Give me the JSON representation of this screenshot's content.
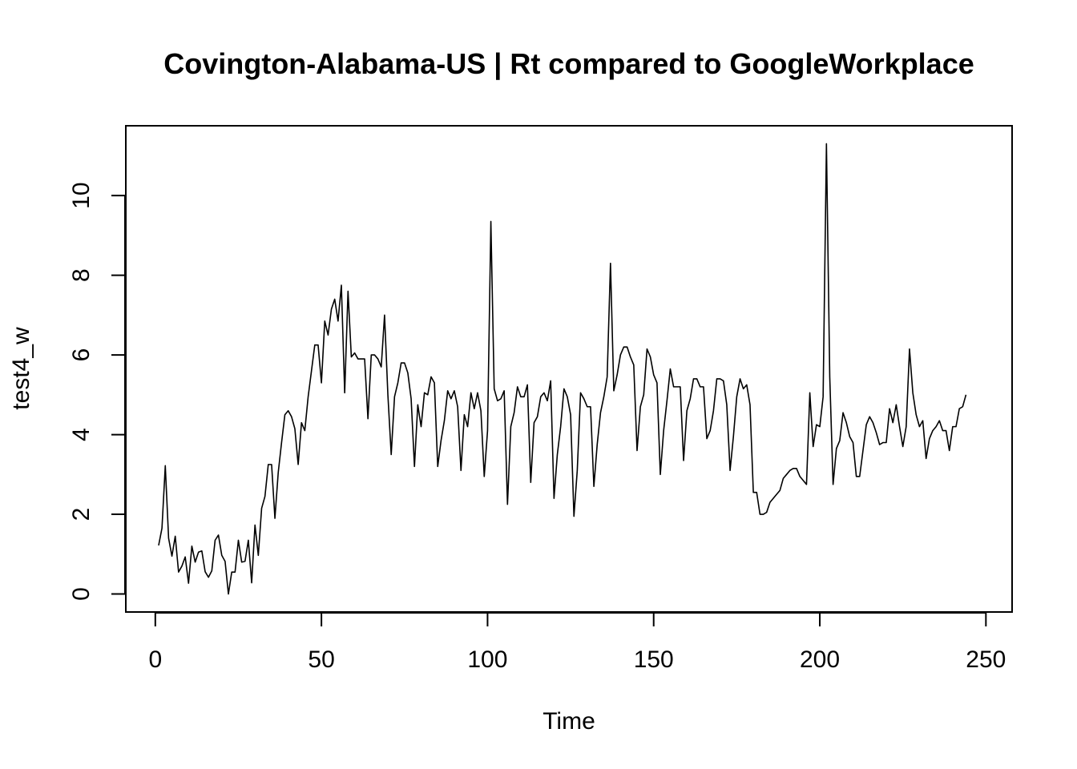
{
  "chart_data": {
    "type": "line",
    "title": "Covington-Alabama-US | Rt compared to GoogleWorkplace",
    "xlabel": "Time",
    "ylabel": "test4_w",
    "xlim": [
      1,
      248
    ],
    "ylim": [
      0,
      11.3
    ],
    "x_ticks": [
      0,
      50,
      100,
      150,
      200,
      250
    ],
    "y_ticks": [
      0,
      2,
      4,
      6,
      8,
      10
    ],
    "grid": false,
    "legend": "none",
    "line_color": "#000000",
    "series": [
      {
        "x_start": 1,
        "x_step": 1,
        "values": [
          1.22,
          1.65,
          3.22,
          1.4,
          0.95,
          1.45,
          0.55,
          0.7,
          0.93,
          0.27,
          1.2,
          0.8,
          1.05,
          1.08,
          0.56,
          0.42,
          0.58,
          1.35,
          1.48,
          0.97,
          0.82,
          0.0,
          0.55,
          0.55,
          1.35,
          0.8,
          0.82,
          1.35,
          0.28,
          1.73,
          0.97,
          2.15,
          2.45,
          3.25,
          3.25,
          1.9,
          3.05,
          3.8,
          4.5,
          4.6,
          4.45,
          4.15,
          3.25,
          4.3,
          4.1,
          4.95,
          5.6,
          6.25,
          6.25,
          5.3,
          6.85,
          6.5,
          7.15,
          7.4,
          6.85,
          7.75,
          5.05,
          7.6,
          5.95,
          6.05,
          5.9,
          5.9,
          5.9,
          4.4,
          6.0,
          6.0,
          5.9,
          5.7,
          7.0,
          5.0,
          3.5,
          4.95,
          5.3,
          5.8,
          5.8,
          5.55,
          4.9,
          3.2,
          4.75,
          4.2,
          5.05,
          5.0,
          5.45,
          5.3,
          3.2,
          3.85,
          4.35,
          5.1,
          4.9,
          5.1,
          4.7,
          3.1,
          4.5,
          4.2,
          5.05,
          4.65,
          5.05,
          4.6,
          2.95,
          4.1,
          9.35,
          5.15,
          4.85,
          4.9,
          5.1,
          2.25,
          4.2,
          4.55,
          5.2,
          4.95,
          4.95,
          5.25,
          2.8,
          4.3,
          4.45,
          4.95,
          5.05,
          4.85,
          5.35,
          2.4,
          3.5,
          4.2,
          5.15,
          4.95,
          4.5,
          1.95,
          3.1,
          5.05,
          4.9,
          4.7,
          4.7,
          2.7,
          3.75,
          4.55,
          4.95,
          5.45,
          8.3,
          5.1,
          5.5,
          6.0,
          6.2,
          6.2,
          5.95,
          5.75,
          3.6,
          4.7,
          5.0,
          6.15,
          5.95,
          5.5,
          5.3,
          3.0,
          4.1,
          4.85,
          5.65,
          5.2,
          5.2,
          5.2,
          3.35,
          4.6,
          4.9,
          5.4,
          5.4,
          5.2,
          5.2,
          3.9,
          4.1,
          4.6,
          5.4,
          5.4,
          5.35,
          4.75,
          3.1,
          3.95,
          4.95,
          5.4,
          5.15,
          5.25,
          4.75,
          2.55,
          2.55,
          2.0,
          2.0,
          2.05,
          2.3,
          2.4,
          2.5,
          2.6,
          2.9,
          3.0,
          3.1,
          3.15,
          3.15,
          2.95,
          2.85,
          2.75,
          5.05,
          3.7,
          4.25,
          4.2,
          4.95,
          11.3,
          5.45,
          2.75,
          3.65,
          3.85,
          4.55,
          4.3,
          3.95,
          3.8,
          2.95,
          2.95,
          3.6,
          4.25,
          4.45,
          4.3,
          4.05,
          3.75,
          3.8,
          3.8,
          4.65,
          4.3,
          4.75,
          4.2,
          3.7,
          4.2,
          6.15,
          5.05,
          4.5,
          4.2,
          4.35,
          3.4,
          3.9,
          4.1,
          4.2,
          4.35,
          4.1,
          4.1,
          3.6,
          4.2,
          4.2,
          4.65,
          4.7,
          5.0
        ]
      }
    ]
  }
}
